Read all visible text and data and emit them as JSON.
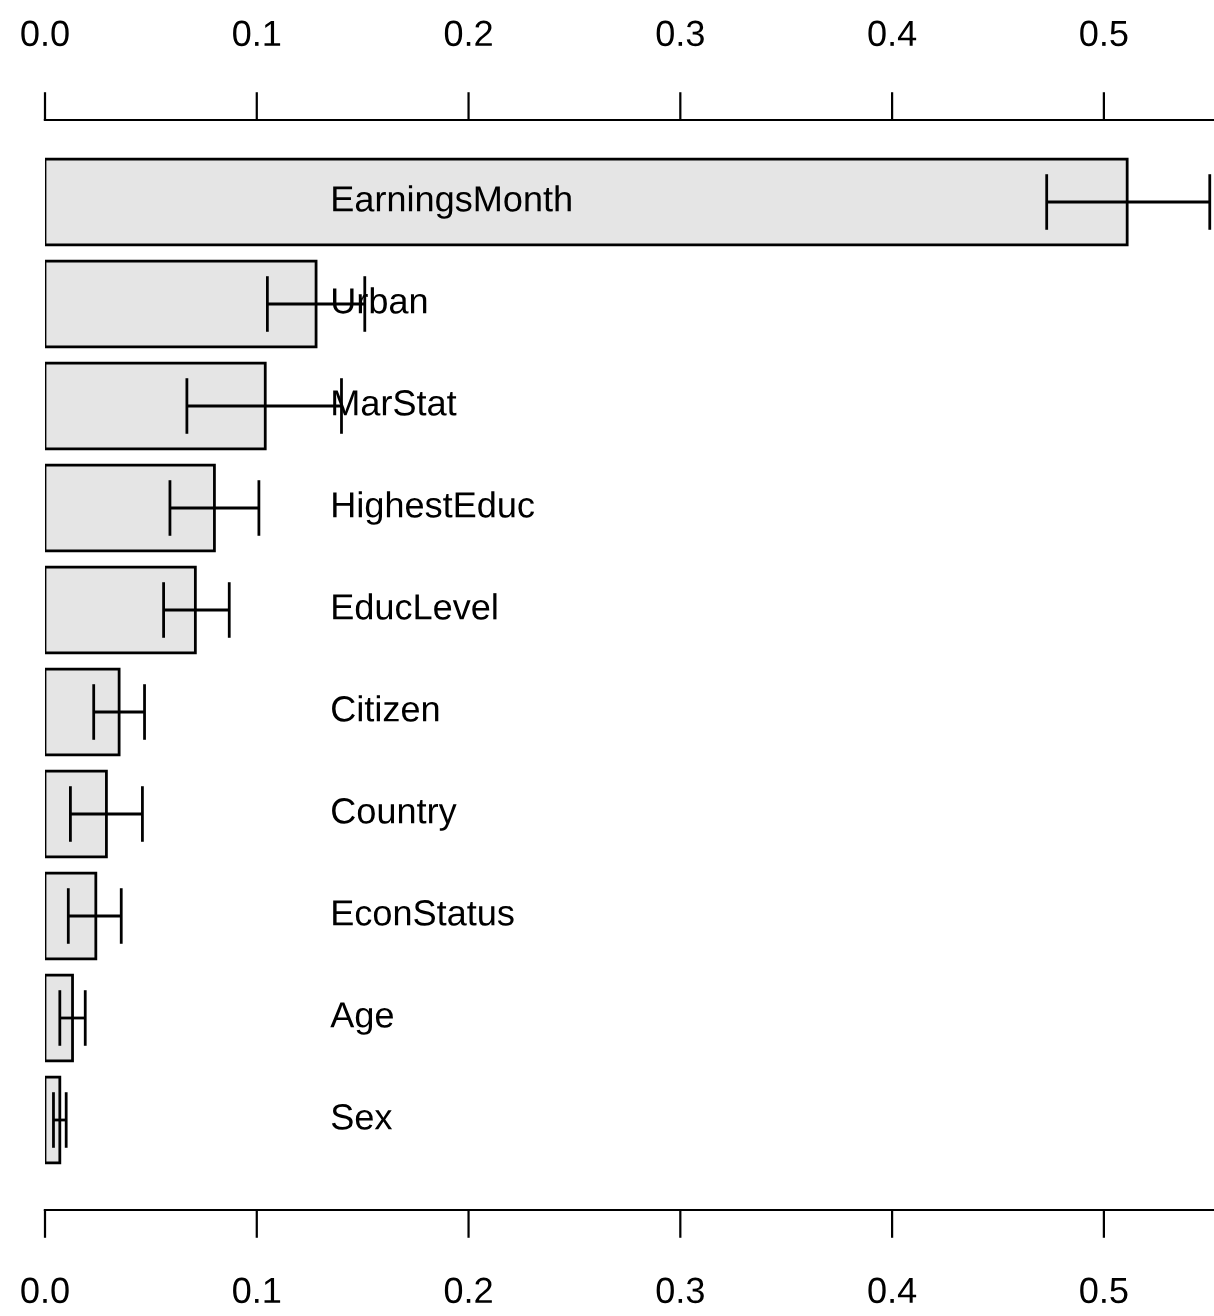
{
  "chart_data": {
    "type": "bar",
    "orientation": "horizontal",
    "categories": [
      "EarningsMonth",
      "Urban",
      "MarStat",
      "HighestEduc",
      "EducLevel",
      "Citizen",
      "Country",
      "EconStatus",
      "Age",
      "Sex"
    ],
    "values": [
      0.511,
      0.128,
      0.104,
      0.08,
      0.071,
      0.035,
      0.029,
      0.024,
      0.013,
      0.007
    ],
    "errors": [
      [
        0.473,
        0.55
      ],
      [
        0.105,
        0.151
      ],
      [
        0.067,
        0.14
      ],
      [
        0.059,
        0.101
      ],
      [
        0.056,
        0.087
      ],
      [
        0.023,
        0.047
      ],
      [
        0.012,
        0.046
      ],
      [
        0.011,
        0.036
      ],
      [
        0.007,
        0.019
      ],
      [
        0.004,
        0.01
      ]
    ],
    "color": "#e5e5e5",
    "xlim": [
      0,
      0.552
    ],
    "xticks": [
      {
        "value": 0,
        "label": "0.0"
      },
      0.1,
      0.2,
      0.3,
      0.4,
      0.5
    ],
    "x2lim": [
      0,
      0.552
    ],
    "x2ticks": [
      {
        "value": 0,
        "label": "0.0"
      },
      0.1,
      0.2,
      0.3,
      0.4,
      0.5
    ],
    "grid": false
  }
}
